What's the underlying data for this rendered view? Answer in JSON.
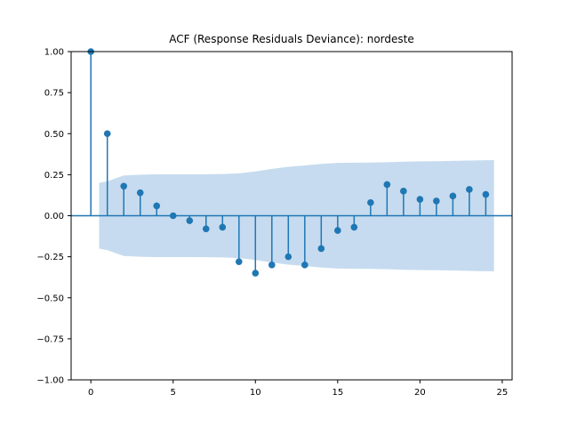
{
  "chart_data": {
    "type": "stem",
    "title": "ACF (Response Residuals Deviance): nordeste",
    "xlabel": "",
    "ylabel": "",
    "xlim": [
      -1.2,
      25.6
    ],
    "ylim": [
      -1.0,
      1.0
    ],
    "x_ticks": [
      0,
      5,
      10,
      15,
      20,
      25
    ],
    "y_ticks": [
      -1.0,
      -0.75,
      -0.5,
      -0.25,
      0.0,
      0.25,
      0.5,
      0.75,
      1.0
    ],
    "x_tick_labels": [
      "0",
      "5",
      "10",
      "15",
      "20",
      "25"
    ],
    "y_tick_labels": [
      "−1.00",
      "−0.75",
      "−0.50",
      "−0.25",
      "0.00",
      "0.25",
      "0.50",
      "0.75",
      "1.00"
    ],
    "grid": false,
    "colors": {
      "stem": "#1f77b4",
      "band": "#c6dbef"
    },
    "lags": [
      0,
      1,
      2,
      3,
      4,
      5,
      6,
      7,
      8,
      9,
      10,
      11,
      12,
      13,
      14,
      15,
      16,
      17,
      18,
      19,
      20,
      21,
      22,
      23,
      24
    ],
    "acf": [
      1.0,
      0.5,
      0.18,
      0.14,
      0.06,
      0.0,
      -0.03,
      -0.08,
      -0.07,
      -0.28,
      -0.35,
      -0.3,
      -0.25,
      -0.3,
      -0.2,
      -0.09,
      -0.07,
      0.08,
      0.19,
      0.15,
      0.1,
      0.09,
      0.12,
      0.16,
      0.13
    ],
    "confidence_band": {
      "x": [
        0.5,
        1,
        2,
        3,
        4,
        5,
        6,
        7,
        8,
        9,
        10,
        11,
        12,
        13,
        14,
        15,
        16,
        17,
        18,
        19,
        20,
        21,
        22,
        23,
        24,
        24.5
      ],
      "upper": [
        0.2,
        0.21,
        0.245,
        0.25,
        0.252,
        0.252,
        0.252,
        0.253,
        0.254,
        0.258,
        0.27,
        0.285,
        0.298,
        0.306,
        0.316,
        0.322,
        0.323,
        0.324,
        0.326,
        0.329,
        0.331,
        0.332,
        0.334,
        0.336,
        0.338,
        0.339
      ]
    }
  }
}
